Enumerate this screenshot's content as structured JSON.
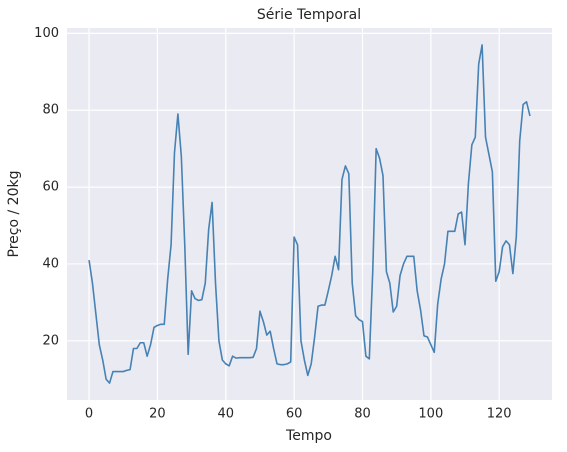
{
  "chart_data": {
    "type": "line",
    "title": "Série Temporal",
    "xlabel": "Tempo",
    "ylabel": "Preço / 20kg",
    "x": [
      0,
      1,
      2,
      3,
      4,
      5,
      6,
      7,
      8,
      9,
      10,
      11,
      12,
      13,
      14,
      15,
      16,
      17,
      18,
      19,
      20,
      21,
      22,
      23,
      24,
      25,
      26,
      27,
      28,
      29,
      30,
      31,
      32,
      33,
      34,
      35,
      36,
      37,
      38,
      39,
      40,
      41,
      42,
      43,
      44,
      45,
      46,
      47,
      48,
      49,
      50,
      51,
      52,
      53,
      54,
      55,
      56,
      57,
      58,
      59,
      60,
      61,
      62,
      63,
      64,
      65,
      66,
      67,
      68,
      69,
      70,
      71,
      72,
      73,
      74,
      75,
      76,
      77,
      78,
      79,
      80,
      81,
      82,
      83,
      84,
      85,
      86,
      87,
      88,
      89,
      90,
      91,
      92,
      93,
      94,
      95,
      96,
      97,
      98,
      99,
      100,
      101,
      102,
      103,
      104,
      105,
      106,
      107,
      108,
      109,
      110,
      111,
      112,
      113,
      114,
      115,
      116,
      117,
      118,
      119,
      120,
      121,
      122,
      123,
      124,
      125,
      126,
      127,
      128,
      129
    ],
    "series": [
      {
        "name": "Preço",
        "color": "#4682b4",
        "values": [
          41,
          35,
          27,
          19,
          15,
          10,
          9,
          12,
          12,
          12,
          12,
          12.3,
          12.5,
          18,
          18,
          19.5,
          19.5,
          16,
          19,
          23.5,
          24,
          24.3,
          24.3,
          36,
          45,
          69,
          79,
          68,
          45,
          16.5,
          33,
          31,
          30.5,
          30.7,
          35,
          49,
          56,
          35,
          20,
          15,
          14,
          13.5,
          16,
          15.5,
          15.6,
          15.6,
          15.6,
          15.6,
          15.7,
          18,
          27.7,
          25,
          21.5,
          22.5,
          18,
          14,
          13.8,
          13.8,
          14,
          14.5,
          47,
          45,
          20,
          15,
          11,
          14,
          21,
          29,
          29.3,
          29.3,
          33,
          37,
          42,
          38.5,
          62,
          65.5,
          63.5,
          35,
          26.5,
          25.5,
          25,
          16,
          15.3,
          38,
          70,
          67.5,
          63,
          38,
          35,
          27.5,
          29,
          37,
          40,
          42,
          42,
          42,
          33,
          28,
          21.3,
          21,
          19,
          17,
          29.5,
          36,
          40,
          48.5,
          48.5,
          48.5,
          53,
          53.5,
          45,
          61,
          71,
          73,
          92,
          97,
          73,
          68.5,
          64,
          35.5,
          38,
          44.5,
          46,
          45,
          37.5,
          47,
          72,
          81.5,
          82.2,
          78.5
        ]
      }
    ],
    "xlim": [
      -6.45,
      135.45
    ],
    "ylim": [
      4.6,
      101.4
    ],
    "xticks": [
      0,
      20,
      40,
      60,
      80,
      100,
      120
    ],
    "yticks": [
      20,
      40,
      60,
      80,
      100
    ],
    "grid": true
  }
}
